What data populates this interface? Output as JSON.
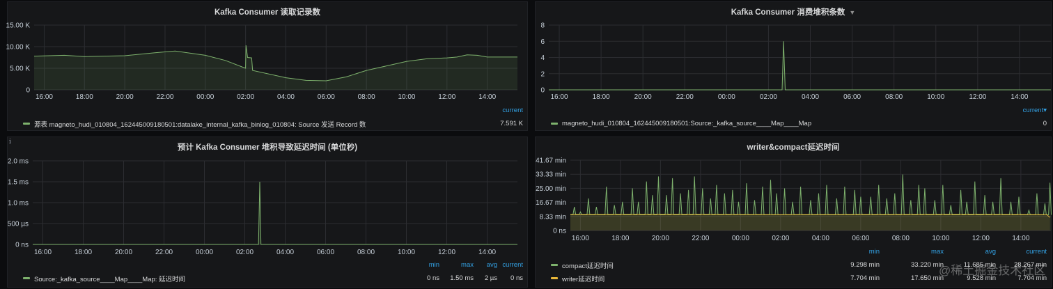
{
  "colors": {
    "green": "#7eb26d",
    "yellow": "#eab839",
    "header_blue": "#33a2e5"
  },
  "watermark": "@稀土掘金技术社区",
  "chart_data": [
    {
      "type": "line",
      "title": "Kafka Consumer 读取记录数",
      "has_caret": false,
      "has_info": false,
      "xlim": [
        15.5,
        39.5
      ],
      "xticks": [
        16,
        18,
        20,
        22,
        24,
        26,
        28,
        30,
        32,
        34,
        36,
        38
      ],
      "xtick_labels": [
        "16:00",
        "18:00",
        "20:00",
        "22:00",
        "00:00",
        "02:00",
        "04:00",
        "06:00",
        "08:00",
        "10:00",
        "12:00",
        "14:00"
      ],
      "ylim": [
        0,
        15000
      ],
      "yticks": [
        0,
        5000,
        10000,
        15000
      ],
      "ytick_labels": [
        "0",
        "5.00 K",
        "10.00 K",
        "15.00 K"
      ],
      "legend_columns": [
        "current"
      ],
      "series": [
        {
          "name": "源表 magneto_hudi_010804_162445009180501:datalake_internal_kafka_binlog_010804: Source 发送 Record 数",
          "color": "#7eb26d",
          "fill": true,
          "legend_values": [
            "7.591 K"
          ],
          "points": [
            [
              15.5,
              7800
            ],
            [
              17,
              8000
            ],
            [
              18,
              7700
            ],
            [
              20,
              7900
            ],
            [
              21.5,
              8600
            ],
            [
              22.5,
              9000
            ],
            [
              24,
              8000
            ],
            [
              25,
              6800
            ],
            [
              26,
              5000
            ],
            [
              26.02,
              10300
            ],
            [
              26.1,
              7500
            ],
            [
              26.3,
              7400
            ],
            [
              26.35,
              4500
            ],
            [
              28,
              2800
            ],
            [
              29,
              2200
            ],
            [
              30,
              2100
            ],
            [
              31,
              3000
            ],
            [
              32,
              4500
            ],
            [
              34,
              6600
            ],
            [
              35,
              7200
            ],
            [
              36,
              7400
            ],
            [
              36.5,
              7600
            ],
            [
              37,
              8100
            ],
            [
              37.5,
              8000
            ],
            [
              38,
              7600
            ],
            [
              39.5,
              7591
            ]
          ]
        }
      ]
    },
    {
      "type": "line",
      "title": "Kafka Consumer 消费堆积条数",
      "has_caret": true,
      "has_info": false,
      "xlim": [
        15.5,
        39.5
      ],
      "xticks": [
        16,
        18,
        20,
        22,
        24,
        26,
        28,
        30,
        32,
        34,
        36,
        38
      ],
      "xtick_labels": [
        "16:00",
        "18:00",
        "20:00",
        "22:00",
        "00:00",
        "02:00",
        "04:00",
        "06:00",
        "08:00",
        "10:00",
        "12:00",
        "14:00"
      ],
      "ylim": [
        0,
        8
      ],
      "yticks": [
        0,
        2,
        4,
        6,
        8
      ],
      "ytick_labels": [
        "0",
        "2",
        "4",
        "6",
        "8"
      ],
      "legend_columns": [
        "current▾"
      ],
      "series": [
        {
          "name": "magneto_hudi_010804_162445009180501:Source:_kafka_source____Map____Map",
          "color": "#7eb26d",
          "fill": true,
          "legend_values": [
            "0"
          ],
          "points": [
            [
              15.5,
              0
            ],
            [
              26.65,
              0
            ],
            [
              26.72,
              6
            ],
            [
              26.8,
              0
            ],
            [
              39.5,
              0
            ]
          ]
        }
      ]
    },
    {
      "type": "line",
      "title": "预计 Kafka Consumer 堆积导致延迟时间 (单位秒)",
      "has_caret": false,
      "has_info": true,
      "info_label": "i",
      "xlim": [
        15.5,
        39.5
      ],
      "xticks": [
        16,
        18,
        20,
        22,
        24,
        26,
        28,
        30,
        32,
        34,
        36,
        38
      ],
      "xtick_labels": [
        "16:00",
        "18:00",
        "20:00",
        "22:00",
        "00:00",
        "02:00",
        "04:00",
        "06:00",
        "08:00",
        "10:00",
        "12:00",
        "14:00"
      ],
      "ylim": [
        0,
        2.0
      ],
      "yticks": [
        0,
        0.5,
        1.0,
        1.5,
        2.0
      ],
      "ytick_labels": [
        "0 ns",
        "500 µs",
        "1.0 ms",
        "1.5 ms",
        "2.0 ms"
      ],
      "legend_columns": [
        "min",
        "max",
        "avg",
        "current"
      ],
      "series": [
        {
          "name": "Source:_kafka_source____Map____Map: 延迟时间",
          "color": "#7eb26d",
          "fill": true,
          "legend_values": [
            "0 ns",
            "1.50 ms",
            "2 µs",
            "0 ns"
          ],
          "points": [
            [
              15.5,
              0
            ],
            [
              26.68,
              0
            ],
            [
              26.74,
              1.5
            ],
            [
              26.8,
              0
            ],
            [
              39.5,
              0
            ]
          ]
        }
      ]
    },
    {
      "type": "line",
      "title": "writer&compact延迟时间",
      "has_caret": false,
      "has_info": false,
      "xlim": [
        15.5,
        39.5
      ],
      "xticks": [
        16,
        18,
        20,
        22,
        24,
        26,
        28,
        30,
        32,
        34,
        36,
        38
      ],
      "xtick_labels": [
        "16:00",
        "18:00",
        "20:00",
        "22:00",
        "00:00",
        "02:00",
        "04:00",
        "06:00",
        "08:00",
        "10:00",
        "12:00",
        "14:00"
      ],
      "ylim": [
        0,
        41.67
      ],
      "yticks": [
        0,
        8.33,
        16.67,
        25.0,
        33.33,
        41.67
      ],
      "ytick_labels": [
        "0 ns",
        "8.33 min",
        "16.67 min",
        "25.00 min",
        "33.33 min",
        "41.67 min"
      ],
      "legend_columns": [
        "min",
        "max",
        "avg",
        "current"
      ],
      "series": [
        {
          "name": "compact延迟时间",
          "color": "#7eb26d",
          "fill": true,
          "baseline": 9.3,
          "legend_values": [
            "9.298 min",
            "33.220 min",
            "11.685 min",
            "28.267 min"
          ],
          "peaks": [
            [
              15.7,
              14
            ],
            [
              16.0,
              11
            ],
            [
              16.4,
              19
            ],
            [
              16.8,
              14
            ],
            [
              17.3,
              26
            ],
            [
              17.7,
              15
            ],
            [
              18.1,
              17
            ],
            [
              18.6,
              25
            ],
            [
              18.9,
              17
            ],
            [
              19.3,
              29
            ],
            [
              19.6,
              21
            ],
            [
              19.9,
              32
            ],
            [
              20.3,
              21
            ],
            [
              20.6,
              31
            ],
            [
              21.0,
              22
            ],
            [
              21.4,
              24
            ],
            [
              21.7,
              32
            ],
            [
              22.1,
              25
            ],
            [
              22.5,
              19
            ],
            [
              22.8,
              27
            ],
            [
              23.2,
              22
            ],
            [
              23.6,
              24
            ],
            [
              23.9,
              17
            ],
            [
              24.3,
              28
            ],
            [
              24.7,
              18
            ],
            [
              25.1,
              26
            ],
            [
              25.5,
              30
            ],
            [
              25.8,
              22
            ],
            [
              26.2,
              25
            ],
            [
              26.6,
              17
            ],
            [
              27.0,
              26
            ],
            [
              27.5,
              18
            ],
            [
              27.9,
              22
            ],
            [
              28.3,
              27
            ],
            [
              28.8,
              19
            ],
            [
              29.2,
              26
            ],
            [
              29.7,
              24
            ],
            [
              30.0,
              20
            ],
            [
              30.5,
              20
            ],
            [
              30.9,
              27
            ],
            [
              31.3,
              19
            ],
            [
              31.7,
              22
            ],
            [
              32.1,
              33.2
            ],
            [
              32.5,
              18
            ],
            [
              32.9,
              27
            ],
            [
              33.2,
              25
            ],
            [
              33.7,
              18
            ],
            [
              34.1,
              27
            ],
            [
              34.5,
              15
            ],
            [
              35.0,
              24
            ],
            [
              35.3,
              17
            ],
            [
              35.7,
              29
            ],
            [
              36.2,
              21
            ],
            [
              36.6,
              17
            ],
            [
              37.0,
              31
            ],
            [
              37.5,
              17
            ],
            [
              37.9,
              20
            ],
            [
              38.4,
              12
            ],
            [
              38.8,
              22
            ],
            [
              39.2,
              16
            ],
            [
              39.45,
              28.3
            ]
          ]
        },
        {
          "name": "writer延迟时间",
          "color": "#eab839",
          "fill": true,
          "legend_values": [
            "7.704 min",
            "17.650 min",
            "9.528 min",
            "7.704 min"
          ],
          "points": [
            [
              15.5,
              9.5
            ],
            [
              20,
              9.6
            ],
            [
              26,
              9.4
            ],
            [
              30,
              9.5
            ],
            [
              36,
              9.6
            ],
            [
              39.3,
              9.4
            ],
            [
              39.45,
              7.7
            ]
          ]
        }
      ]
    }
  ]
}
